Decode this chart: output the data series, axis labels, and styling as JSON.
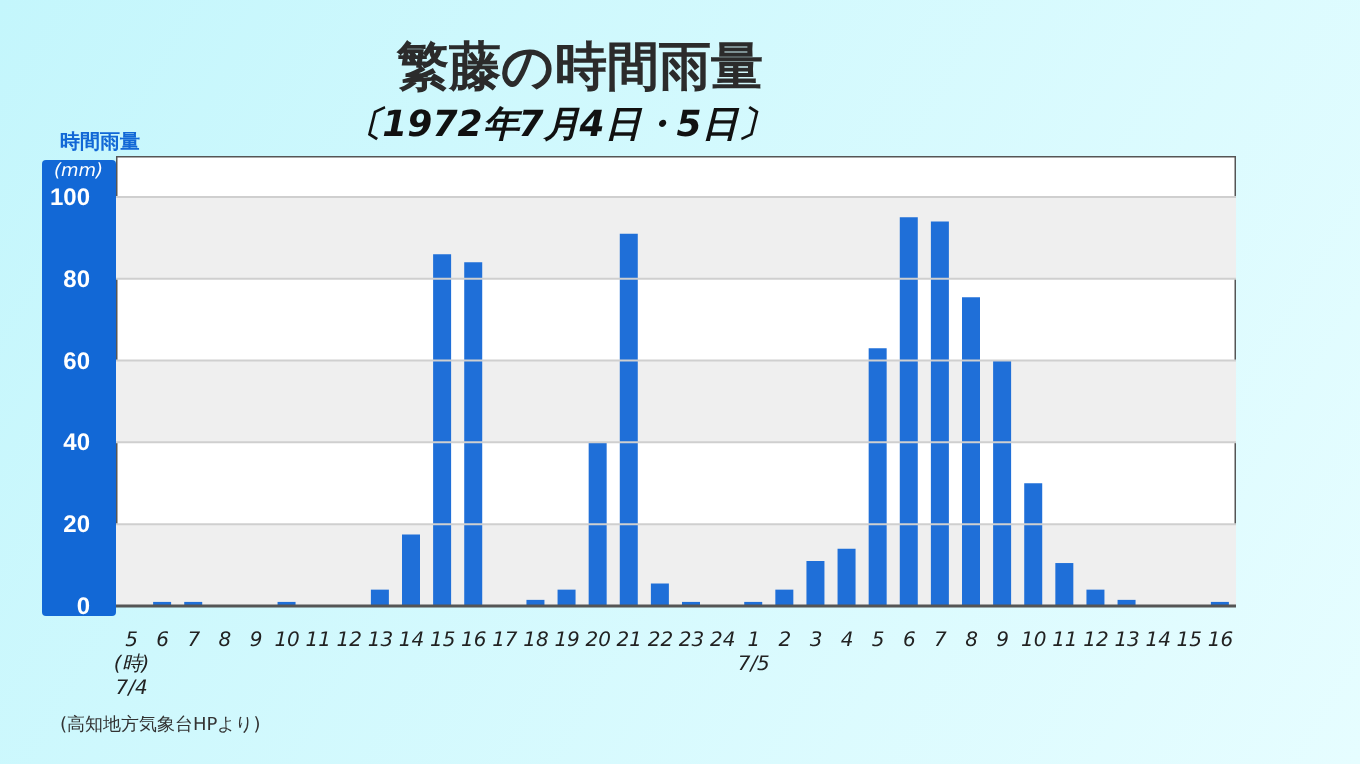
{
  "chart_data": {
    "type": "bar",
    "title": "繁藤の時間雨量",
    "subtitle": "〔1972年7月4日・5日〕",
    "ylabel": "時間雨量\n(mm)",
    "categories": [
      "5\n(時)\n7/4",
      "6",
      "7",
      "8",
      "9",
      "10",
      "11",
      "12",
      "13",
      "14",
      "15",
      "16",
      "17",
      "18",
      "19",
      "20",
      "21",
      "22",
      "23",
      "24",
      "1\n7/5",
      "2",
      "3",
      "4",
      "5",
      "6",
      "7",
      "8",
      "9",
      "10",
      "11",
      "12",
      "13",
      "14",
      "15",
      "16"
    ],
    "values": [
      0,
      1,
      1,
      0,
      0,
      1,
      0,
      0,
      4,
      17.5,
      86,
      84,
      0,
      1.5,
      4,
      40,
      91,
      5.5,
      1,
      0,
      1,
      4,
      11,
      14,
      63,
      95,
      94,
      75.5,
      60,
      30,
      10.5,
      4,
      1.5,
      0,
      0,
      1
    ],
    "color": "#1f6fd8",
    "ylim": [
      0,
      110
    ],
    "yticks": [
      0,
      20,
      40,
      60,
      80,
      100
    ],
    "grid": "y",
    "annotations": [
      "(高知地方気象台HPより)"
    ]
  }
}
